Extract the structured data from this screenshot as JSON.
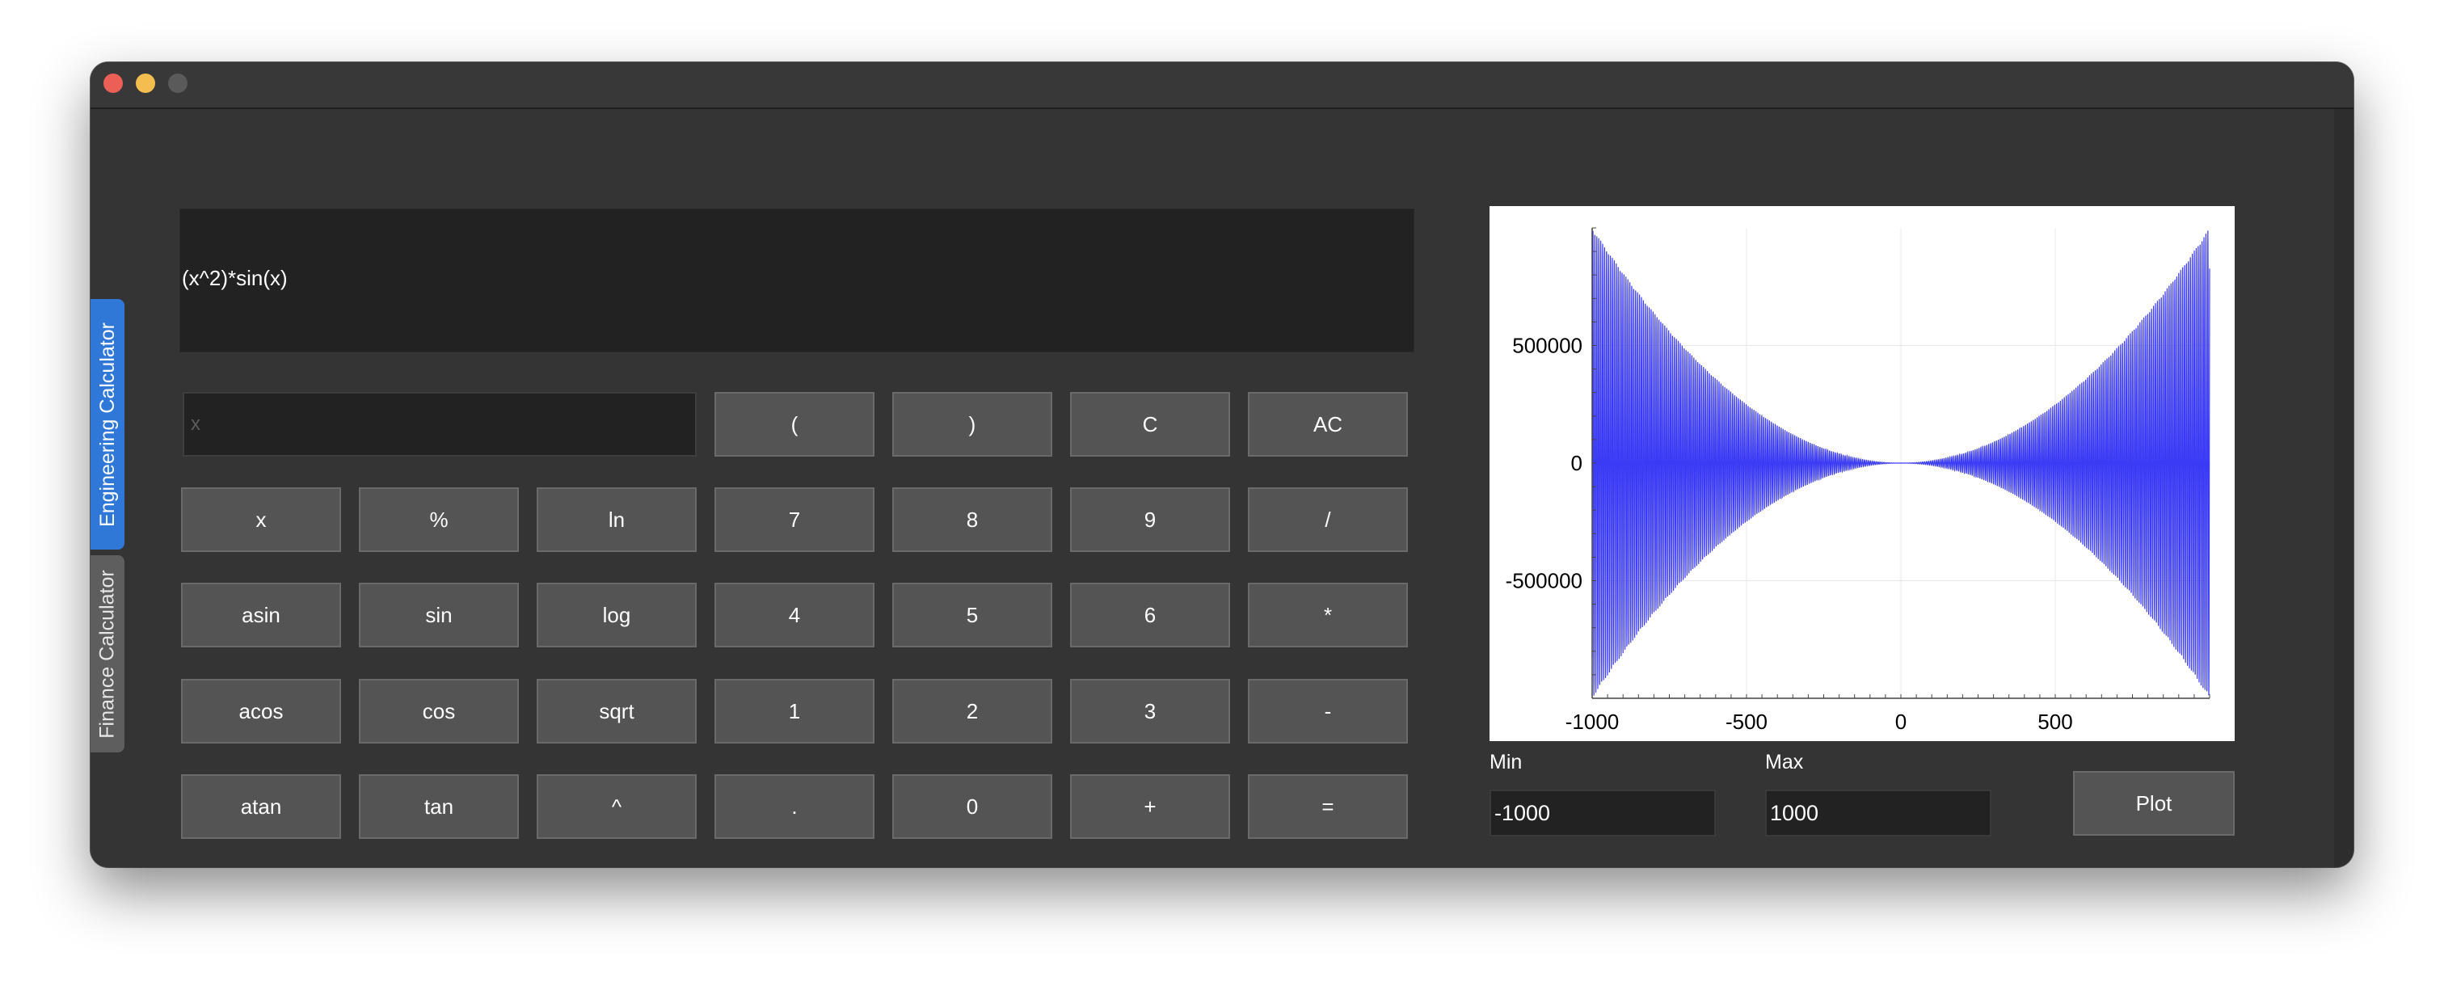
{
  "window": {
    "traffic_lights": [
      "close",
      "minimize",
      "maximize"
    ]
  },
  "tabs": [
    {
      "label": "Engineering Calculator",
      "active": true
    },
    {
      "label": "Finance Calculator",
      "active": false
    }
  ],
  "display": {
    "expression": "(x^2)*sin(x)"
  },
  "variable_input": {
    "placeholder": "x",
    "value": ""
  },
  "keypad": {
    "row0": [
      "(",
      ")",
      "C",
      "AC"
    ],
    "row1": [
      "x",
      "%",
      "ln",
      "7",
      "8",
      "9",
      "/"
    ],
    "row2": [
      "asin",
      "sin",
      "log",
      "4",
      "5",
      "6",
      "*"
    ],
    "row3": [
      "acos",
      "cos",
      "sqrt",
      "1",
      "2",
      "3",
      "-"
    ],
    "row4": [
      "atan",
      "tan",
      "^",
      ".",
      "0",
      "+",
      "="
    ]
  },
  "plot": {
    "min_label": "Min",
    "max_label": "Max",
    "min_value": "-1000",
    "max_value": "1000",
    "plot_button": "Plot"
  },
  "colors": {
    "accent": "#2f78d8",
    "series": "#3b3bf5",
    "window_bg": "#333333"
  },
  "chart_data": {
    "type": "line",
    "function": "(x^2)*sin(x)",
    "xlim": [
      -1000,
      1000
    ],
    "ylim": [
      -1000000,
      1000000
    ],
    "xticks": [
      "-1000",
      "-500",
      "0",
      "500"
    ],
    "xtick_values": [
      -1000,
      -500,
      0,
      500
    ],
    "yticks": [
      "500000",
      "0",
      "-500000"
    ],
    "ytick_values": [
      500000,
      0,
      -500000
    ],
    "grid": true,
    "series": [
      {
        "values_description": "y = x^2 * sin(x) sampled over x in [-1000, 1000]"
      }
    ]
  }
}
